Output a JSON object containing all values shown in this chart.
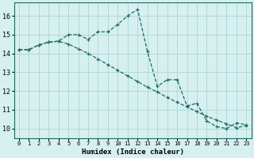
{
  "title": "",
  "xlabel": "Humidex (Indice chaleur)",
  "ylabel": "",
  "bg_color": "#d6f0f0",
  "grid_color": "#b0d8d8",
  "line_color": "#1e6b5e",
  "xlim": [
    -0.5,
    23.5
  ],
  "ylim": [
    9.5,
    16.7
  ],
  "xticks": [
    0,
    1,
    2,
    3,
    4,
    5,
    6,
    7,
    8,
    9,
    10,
    11,
    12,
    13,
    14,
    15,
    16,
    17,
    18,
    19,
    20,
    21,
    22,
    23
  ],
  "yticks": [
    10,
    11,
    12,
    13,
    14,
    15,
    16
  ],
  "curve1_x": [
    0,
    1,
    2,
    3,
    4,
    5,
    6,
    7,
    8,
    9,
    10,
    11,
    12,
    13,
    14,
    15,
    16,
    17,
    18,
    19,
    20,
    21,
    22,
    23
  ],
  "curve1_y": [
    14.2,
    14.2,
    14.45,
    14.6,
    14.65,
    15.0,
    15.0,
    14.75,
    15.15,
    15.15,
    15.55,
    16.0,
    16.35,
    14.1,
    12.25,
    12.6,
    12.6,
    11.2,
    11.35,
    10.4,
    10.1,
    10.0,
    10.3,
    10.2
  ],
  "curve2_x": [
    0,
    1,
    2,
    3,
    4,
    5,
    6,
    7,
    8,
    9,
    10,
    11,
    12,
    13,
    14,
    15,
    16,
    17,
    18,
    19,
    20,
    21,
    22,
    23
  ],
  "curve2_y": [
    14.2,
    14.2,
    14.45,
    14.6,
    14.65,
    14.5,
    14.25,
    14.0,
    13.7,
    13.4,
    13.1,
    12.8,
    12.5,
    12.2,
    11.95,
    11.65,
    11.4,
    11.15,
    10.9,
    10.65,
    10.45,
    10.25,
    10.05,
    10.15
  ]
}
